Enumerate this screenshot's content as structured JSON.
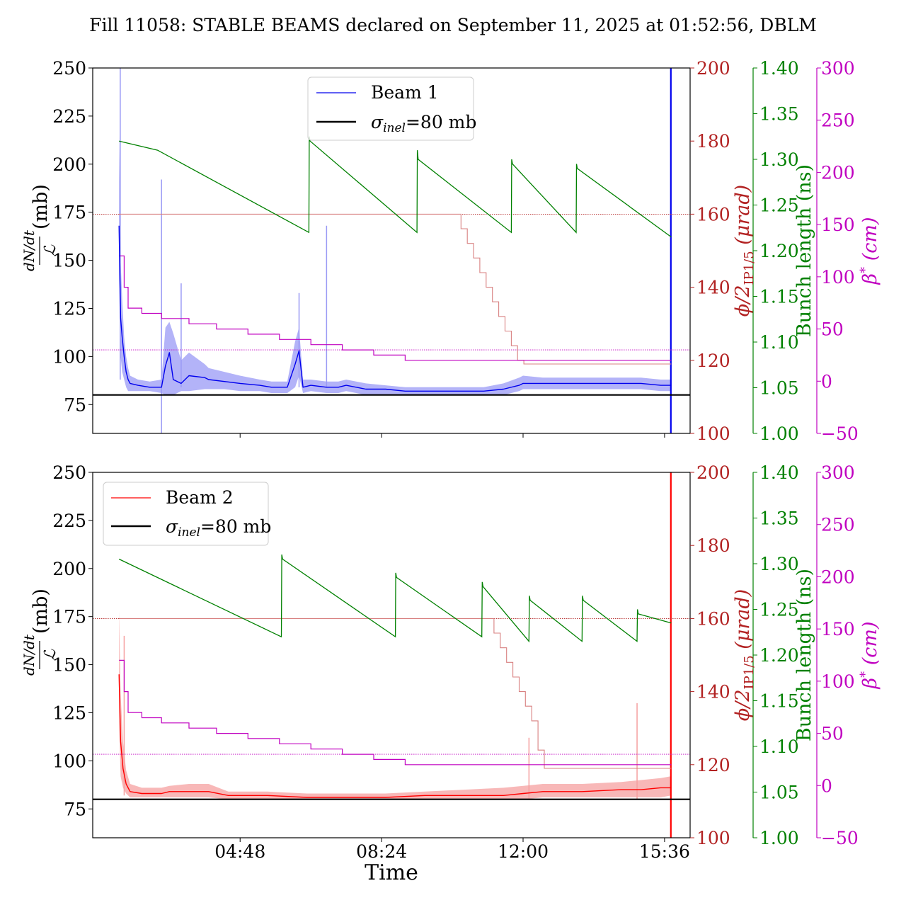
{
  "title": "Fill 11058: STABLE BEAMS declared on September 11, 2025 at 01:52:56, DBLM",
  "x_axis": {
    "label": "Time",
    "ticks": [
      "04:48",
      "08:24",
      "12:00",
      "15:36"
    ]
  },
  "axes": {
    "left": {
      "label_fraction_top": "dN/dt",
      "label_fraction_bottom": "ℒ",
      "label_unit": "(mb)",
      "ticks": [
        "75",
        "100",
        "125",
        "150",
        "175",
        "200",
        "225",
        "250"
      ],
      "color": "#000000"
    },
    "right1": {
      "label_main": "ϕ/2",
      "label_sub": "IP1/5",
      "label_unit": "(μrad)",
      "ticks": [
        "100",
        "120",
        "140",
        "160",
        "180",
        "200"
      ],
      "color": "#b22222"
    },
    "right2": {
      "label": "Bunch length (ns)",
      "ticks": [
        "1.00",
        "1.05",
        "1.10",
        "1.15",
        "1.20",
        "1.25",
        "1.30",
        "1.35",
        "1.40"
      ],
      "color": "#008000"
    },
    "right3": {
      "label_main": "β",
      "label_sup": "*",
      "label_unit": "(cm)",
      "ticks": [
        "−50",
        "0",
        "50",
        "100",
        "150",
        "200",
        "250",
        "300"
      ],
      "color": "#c000c0"
    }
  },
  "panels": [
    {
      "legend": {
        "beam_label": "Beam 1",
        "sigma_symbol": "σ",
        "sigma_sub": "inel",
        "sigma_value": "=80 mb"
      }
    },
    {
      "legend": {
        "beam_label": "Beam 2",
        "sigma_symbol": "σ",
        "sigma_sub": "inel",
        "sigma_value": "=80 mb"
      }
    }
  ],
  "colors": {
    "beam1": "#0000ee",
    "beam1_band": "#9a9af5",
    "beam2": "#ff0000",
    "beam2_band": "#f5a0a0",
    "sigma": "#000000",
    "crossing_angle": "#b22222",
    "bunch_length": "#008000",
    "beta_star": "#c000c0"
  },
  "chart_data": [
    {
      "type": "line",
      "panel": "Beam 1",
      "x_unit": "hours since 00:00 (Sep 11, 2025)",
      "xlim": [
        1.05,
        16.25
      ],
      "ylim": [
        60,
        250
      ],
      "ylim_crossing_angle": [
        100,
        200
      ],
      "ylim_bunch_length": [
        1.0,
        1.4
      ],
      "ylim_beta_star": [
        -50,
        300
      ],
      "series": [
        {
          "name": "Beam 1",
          "axis": "left",
          "x": [
            1.72,
            1.76,
            1.8,
            1.85,
            1.9,
            1.95,
            2.0,
            2.2,
            2.5,
            2.8,
            2.9,
            3.0,
            3.1,
            3.3,
            3.5,
            3.9,
            4.0,
            4.4,
            4.8,
            5.3,
            5.6,
            6.0,
            6.2,
            6.3,
            6.4,
            6.6,
            7.0,
            7.3,
            7.5,
            8.0,
            8.5,
            9.0,
            9.5,
            10.0,
            10.5,
            11.0,
            11.5,
            11.9,
            12.0,
            12.5,
            13.0,
            14.0,
            15.0,
            15.5,
            15.77
          ],
          "y": [
            168,
            120,
            110,
            100,
            92,
            88,
            86,
            85,
            84,
            84,
            95,
            102,
            88,
            86,
            90,
            89,
            88,
            87,
            86,
            85,
            84,
            84,
            96,
            103,
            84,
            85,
            84,
            84,
            85,
            83,
            83,
            82,
            82,
            82,
            82,
            82,
            83,
            85,
            86,
            86,
            86,
            86,
            86,
            85,
            85
          ]
        },
        {
          "name": "Beam 1 band upper",
          "axis": "left",
          "x": [
            1.72,
            1.76,
            1.8,
            1.85,
            1.9,
            1.95,
            2.0,
            2.2,
            2.5,
            2.8,
            2.9,
            3.0,
            3.1,
            3.3,
            3.5,
            3.9,
            4.0,
            4.4,
            4.8,
            5.3,
            5.6,
            6.0,
            6.2,
            6.3,
            6.4,
            6.6,
            7.0,
            7.3,
            7.5,
            8.0,
            8.5,
            9.0,
            9.5,
            10.0,
            10.5,
            11.0,
            11.5,
            11.9,
            12.0,
            12.5,
            13.0,
            14.0,
            15.0,
            15.5,
            15.77
          ],
          "y": [
            215,
            150,
            130,
            110,
            100,
            94,
            90,
            88,
            87,
            88,
            115,
            118,
            112,
            98,
            102,
            96,
            94,
            92,
            90,
            88,
            87,
            87,
            108,
            115,
            88,
            88,
            87,
            87,
            88,
            86,
            85,
            84,
            84,
            84,
            84,
            84,
            86,
            89,
            90,
            89,
            89,
            89,
            89,
            88,
            88
          ]
        },
        {
          "name": "Beam 1 band lower",
          "axis": "left",
          "x": [
            1.72,
            1.76,
            1.8,
            1.85,
            1.9,
            1.95,
            2.0,
            2.2,
            2.5,
            2.8,
            2.9,
            3.0,
            3.1,
            3.3,
            3.5,
            3.9,
            4.0,
            4.4,
            4.8,
            5.3,
            5.6,
            6.0,
            6.2,
            6.3,
            6.4,
            6.6,
            7.0,
            7.3,
            7.5,
            8.0,
            8.5,
            9.0,
            9.5,
            10.0,
            10.5,
            11.0,
            11.5,
            11.9,
            12.0,
            12.5,
            13.0,
            14.0,
            15.0,
            15.5,
            15.77
          ],
          "y": [
            140,
            100,
            92,
            88,
            84,
            82,
            82,
            82,
            82,
            81,
            80,
            80,
            80,
            82,
            82,
            83,
            83,
            83,
            82,
            82,
            81,
            81,
            84,
            90,
            81,
            82,
            81,
            81,
            82,
            80,
            80,
            80,
            80,
            80,
            80,
            80,
            80,
            82,
            83,
            83,
            83,
            83,
            83,
            82,
            82
          ]
        },
        {
          "name": "Bunch length",
          "axis": "right2",
          "x": [
            1.72,
            2.7,
            6.55,
            6.56,
            6.58,
            9.3,
            9.31,
            9.33,
            11.7,
            11.71,
            11.73,
            13.35,
            13.36,
            13.38,
            15.77
          ],
          "y": [
            1.32,
            1.31,
            1.22,
            1.325,
            1.32,
            1.22,
            1.31,
            1.3,
            1.22,
            1.3,
            1.295,
            1.22,
            1.295,
            1.29,
            1.215
          ]
        },
        {
          "name": "Crossing angle",
          "axis": "right1",
          "x": [
            1.72,
            10.26,
            10.42,
            10.58,
            10.74,
            10.9,
            11.06,
            11.22,
            11.38,
            11.54,
            11.7,
            11.86,
            12.02,
            12.18,
            15.77
          ],
          "y": [
            160,
            160,
            156,
            152,
            148,
            144,
            140,
            136,
            132,
            128,
            124,
            120,
            119,
            119,
            119
          ]
        },
        {
          "name": "Beta star",
          "axis": "right3",
          "x": [
            1.72,
            1.85,
            1.95,
            2.3,
            2.8,
            3.5,
            4.2,
            5.0,
            5.8,
            6.6,
            7.4,
            8.2,
            9.0,
            15.77
          ],
          "y": [
            120,
            90,
            70,
            65,
            60,
            55,
            50,
            45,
            40,
            35,
            30,
            25,
            20,
            20
          ]
        },
        {
          "name": "β* reference",
          "axis": "right3",
          "x": [
            1.05,
            16.25
          ],
          "y": [
            30,
            30
          ]
        },
        {
          "name": "ϕ/2 reference",
          "axis": "right1",
          "x": [
            1.05,
            16.25
          ],
          "y": [
            160,
            160
          ]
        },
        {
          "name": "σinel=80 mb",
          "axis": "left",
          "x": [
            1.05,
            16.25
          ],
          "y": [
            80,
            80
          ]
        }
      ],
      "spikes": {
        "axis": "left",
        "x": [
          1.75,
          2.8,
          3.3,
          6.3,
          7.0,
          15.76
        ],
        "top": [
          250,
          192,
          138,
          133,
          168,
          250
        ],
        "bottom": [
          88,
          60,
          84,
          84,
          84,
          60
        ]
      }
    },
    {
      "type": "line",
      "panel": "Beam 2",
      "x_unit": "hours since 00:00 (Sep 11, 2025)",
      "xlim": [
        1.05,
        16.25
      ],
      "ylim": [
        60,
        250
      ],
      "ylim_crossing_angle": [
        100,
        200
      ],
      "ylim_bunch_length": [
        1.0,
        1.4
      ],
      "ylim_beta_star": [
        -50,
        300
      ],
      "series": [
        {
          "name": "Beam 2",
          "axis": "left",
          "x": [
            1.72,
            1.76,
            1.82,
            1.9,
            2.0,
            2.3,
            2.8,
            3.0,
            3.5,
            4.0,
            4.5,
            5.5,
            6.5,
            7.5,
            8.5,
            9.5,
            10.5,
            11.5,
            12.0,
            12.5,
            13.5,
            14.5,
            15.0,
            15.5,
            15.77
          ],
          "y": [
            145,
            110,
            96,
            88,
            84,
            83,
            83,
            84,
            84,
            84,
            82,
            82,
            81,
            81,
            81,
            82,
            82,
            82,
            83,
            84,
            84,
            85,
            85,
            86,
            86
          ]
        },
        {
          "name": "Beam 2 band upper",
          "axis": "left",
          "x": [
            1.72,
            1.76,
            1.82,
            1.9,
            2.0,
            2.3,
            2.8,
            3.0,
            3.5,
            4.0,
            4.5,
            5.5,
            6.5,
            7.5,
            8.5,
            9.5,
            10.5,
            11.5,
            12.0,
            12.5,
            13.5,
            14.5,
            15.0,
            15.5,
            15.77
          ],
          "y": [
            178,
            135,
            110,
            95,
            88,
            86,
            86,
            87,
            88,
            88,
            84,
            84,
            83,
            83,
            83,
            84,
            85,
            86,
            87,
            88,
            88,
            89,
            90,
            91,
            92
          ]
        },
        {
          "name": "Beam 2 band lower",
          "axis": "left",
          "x": [
            1.72,
            1.76,
            1.82,
            1.9,
            2.0,
            2.3,
            2.8,
            3.0,
            3.5,
            4.0,
            4.5,
            5.5,
            6.5,
            7.5,
            8.5,
            9.5,
            10.5,
            11.5,
            12.0,
            12.5,
            13.5,
            14.5,
            15.0,
            15.5,
            15.77
          ],
          "y": [
            120,
            92,
            86,
            83,
            81,
            81,
            81,
            81,
            81,
            81,
            80,
            80,
            80,
            80,
            80,
            80,
            80,
            80,
            80,
            81,
            81,
            81,
            81,
            81,
            82
          ]
        },
        {
          "name": "Bunch length",
          "axis": "right2",
          "x": [
            1.72,
            5.85,
            5.86,
            5.88,
            8.75,
            8.76,
            8.78,
            10.95,
            10.96,
            10.98,
            12.15,
            12.16,
            12.18,
            13.5,
            13.51,
            13.53,
            14.9,
            14.91,
            14.93,
            15.77
          ],
          "y": [
            1.305,
            1.22,
            1.31,
            1.305,
            1.22,
            1.29,
            1.285,
            1.22,
            1.28,
            1.275,
            1.215,
            1.265,
            1.26,
            1.215,
            1.265,
            1.26,
            1.215,
            1.25,
            1.245,
            1.235
          ]
        },
        {
          "name": "Crossing angle",
          "axis": "right1",
          "x": [
            1.72,
            11.1,
            11.26,
            11.42,
            11.58,
            11.74,
            11.9,
            12.06,
            12.22,
            12.38,
            12.54,
            15.77
          ],
          "y": [
            160,
            160,
            156,
            152,
            148,
            144,
            140,
            136,
            132,
            124,
            119,
            119
          ]
        },
        {
          "name": "Beta star",
          "axis": "right3",
          "x": [
            1.72,
            1.85,
            1.95,
            2.3,
            2.8,
            3.5,
            4.2,
            5.0,
            5.8,
            6.6,
            7.4,
            8.2,
            9.0,
            15.77
          ],
          "y": [
            120,
            90,
            70,
            65,
            60,
            55,
            50,
            45,
            40,
            35,
            30,
            25,
            20,
            20
          ]
        },
        {
          "name": "β* reference",
          "axis": "right3",
          "x": [
            1.05,
            16.25
          ],
          "y": [
            30,
            30
          ]
        },
        {
          "name": "ϕ/2 reference",
          "axis": "right1",
          "x": [
            1.05,
            16.25
          ],
          "y": [
            160,
            160
          ]
        },
        {
          "name": "σinel=80 mb",
          "axis": "left",
          "x": [
            1.05,
            16.25
          ],
          "y": [
            80,
            80
          ]
        }
      ],
      "spikes": {
        "axis": "left",
        "x": [
          1.85,
          12.15,
          14.9,
          15.76
        ],
        "top": [
          165,
          112,
          130,
          250
        ],
        "bottom": [
          82,
          80,
          80,
          60
        ]
      }
    }
  ]
}
